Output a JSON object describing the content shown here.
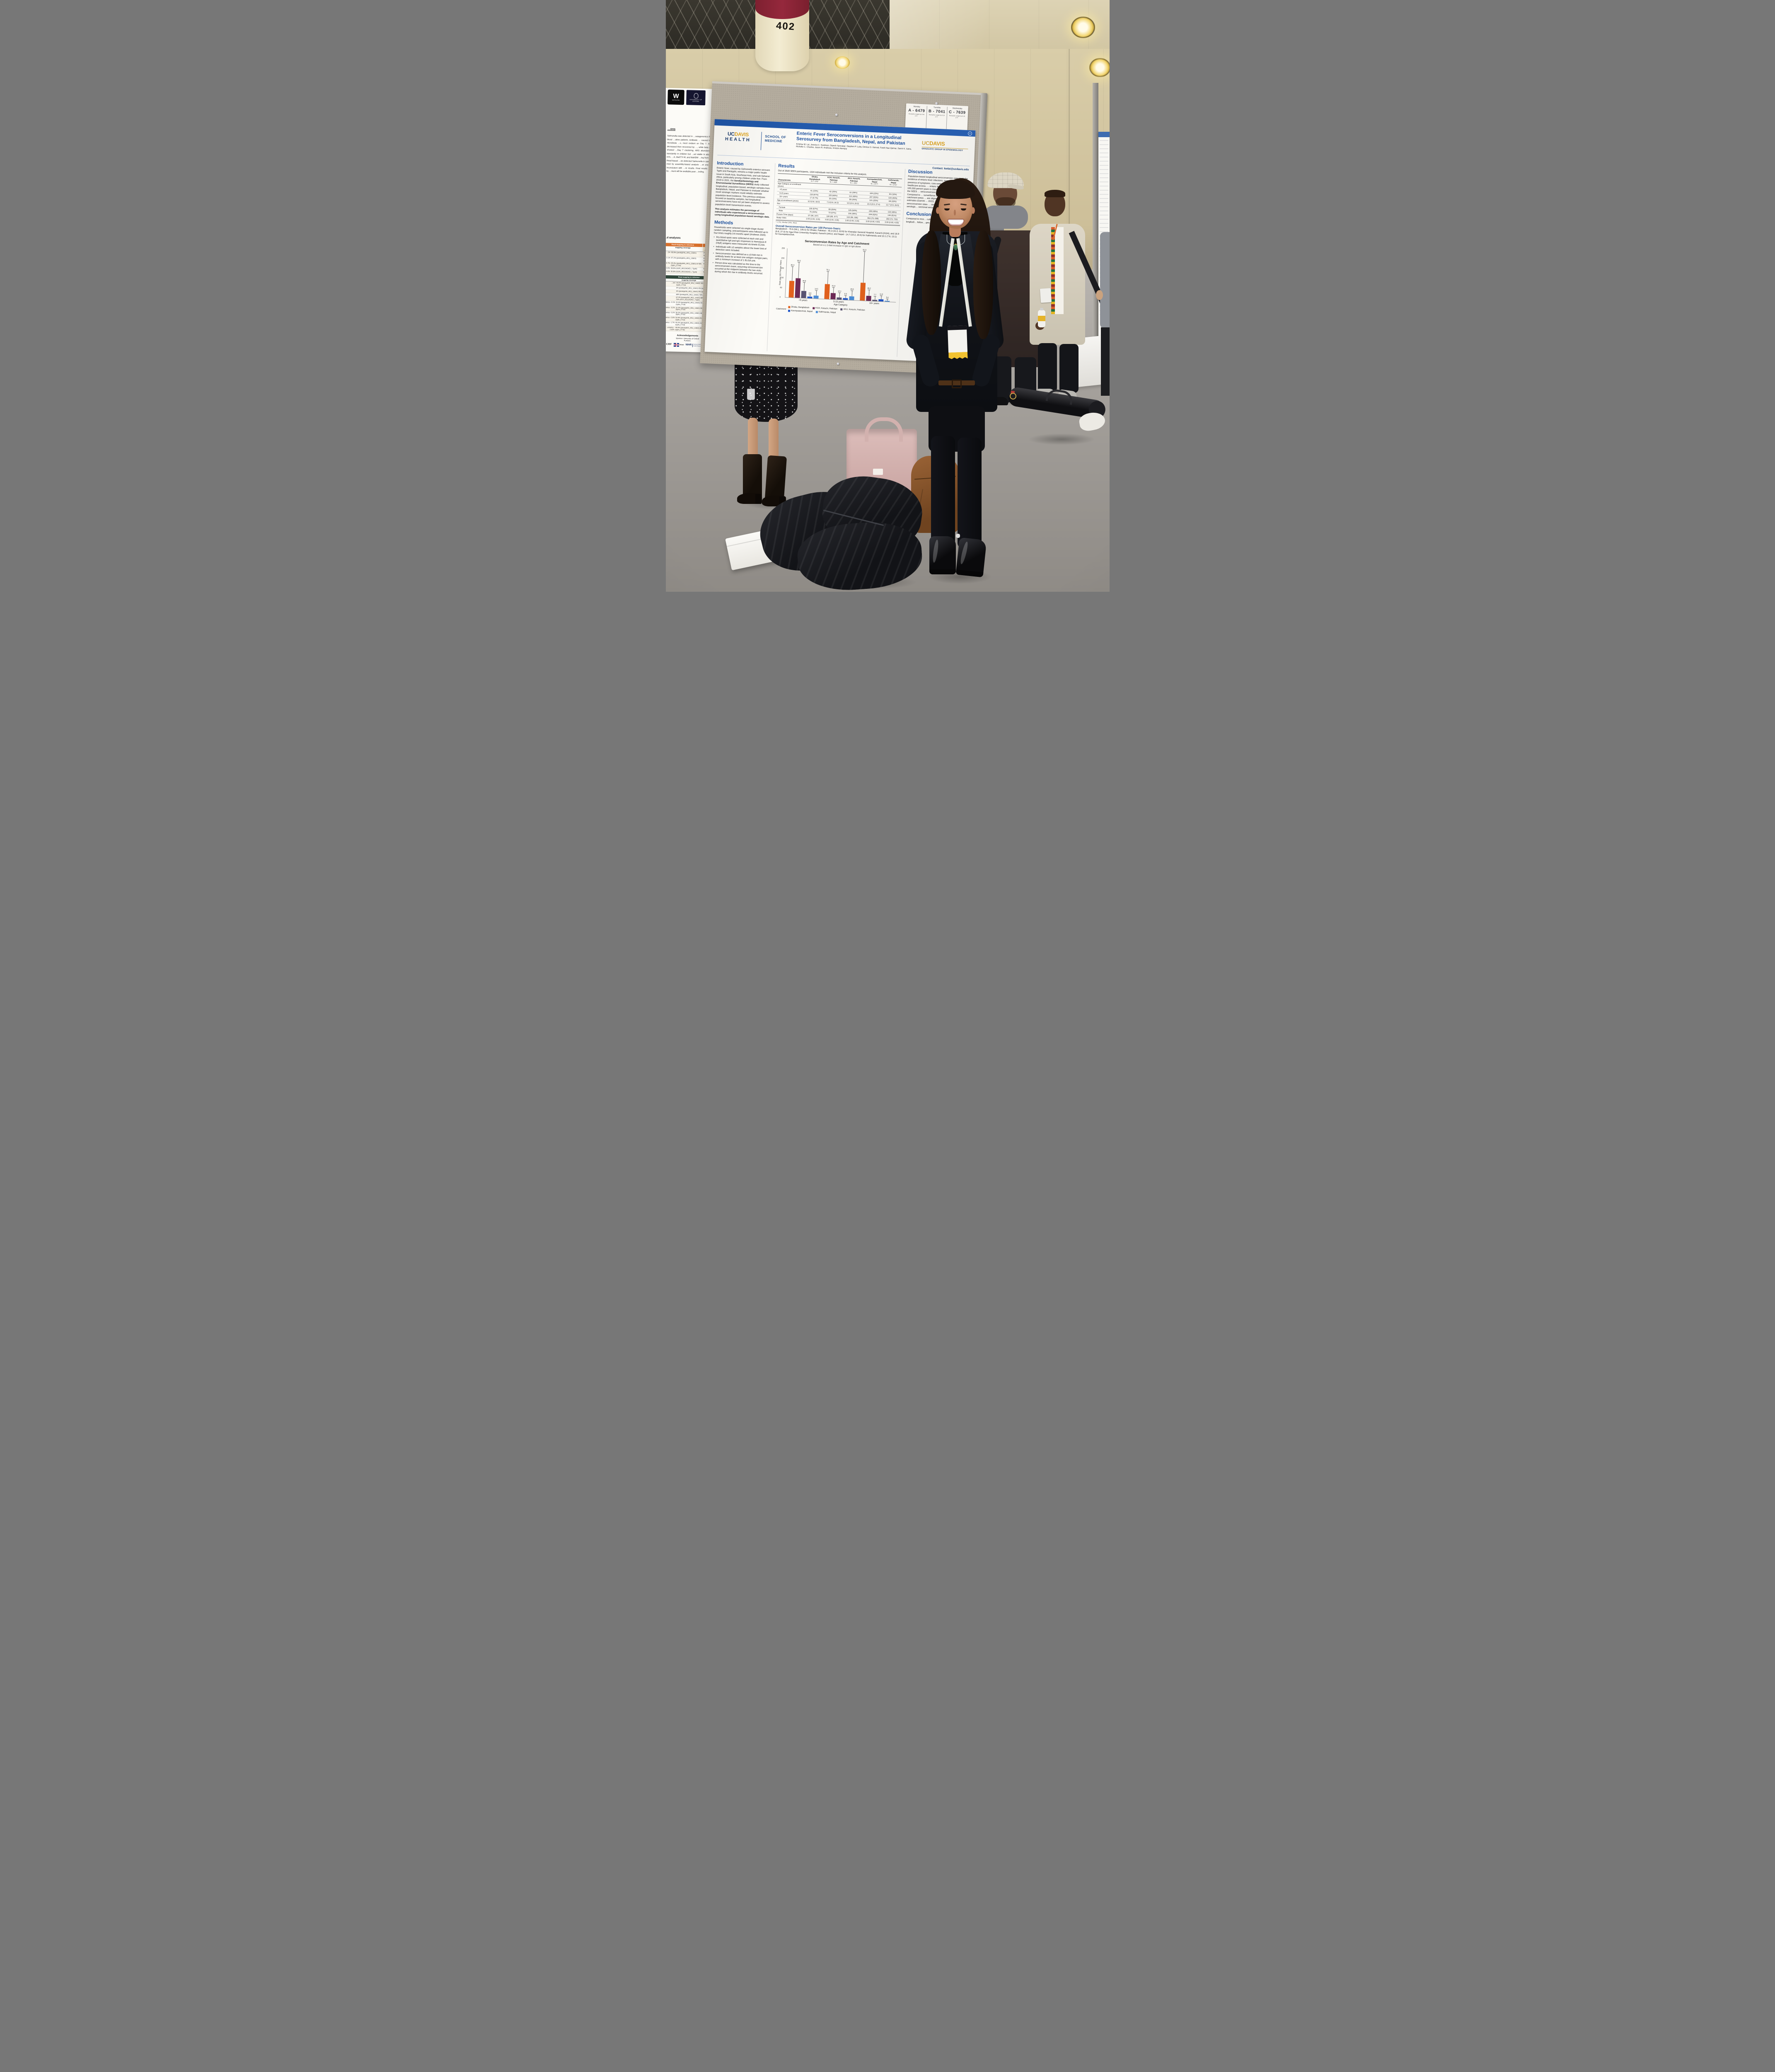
{
  "pillar_label": "402",
  "poster_tag": "7041",
  "schedule_card": {
    "columns": [
      {
        "day": "Monday",
        "code": "A - 6479",
        "note": "Dismantle tonight by 6:45 p.m."
      },
      {
        "day": "Tuesday",
        "code": "B - 7041",
        "note": "Dismantle tonight by 6:15 p.m."
      },
      {
        "day": "Wednesday",
        "code": "C - 7639",
        "note": "Dismantle tonight by 5:15 p.m."
      }
    ]
  },
  "poster": {
    "logos": {
      "health_uc": "UC",
      "health_davis": "DAVIS",
      "health_word": "HEALTH",
      "school": "SCHOOL OF MEDICINE",
      "grad_uc": "UC",
      "grad_davis": "DAVIS",
      "grad_sub": "GRADUATE GROUP IN EPIDEMIOLOGY"
    },
    "accent_blue": "#1b4f9e",
    "gold": "#e0a51e",
    "title": "Enteric Fever Seroconversions in a Longitudinal Serosurvey from Bangladesh, Nepal, and Pakistan",
    "authors": "Kristina W. Lai, Jessica C. Seidman, Dipesh Tamrakar, Stephen P. Luby, Denise O. Garrett, Farah Naz Qamar, Samir K. Saha, Richelle C. Charles, Jason R. Andrews, Kristen Aiemjoy",
    "contact": "Contact: kwlai@ucdavis.edu",
    "intro": {
      "heading": "Introduction",
      "p1_pre": "Enteric fever, caused by ",
      "p1_italic": "Salmonella enterica",
      "p1_mid": " serovars Typhi and Paratyphi, remains a major public health issue in South Asia, Southeast Asia, and sub-Saharan Africa, particularly among children under five. From 2019 to 2021, the ",
      "p1_bold": "SeroEpidemiology and Environmental Surveillance (SEES)",
      "p1_post": " study collected longitudinal, population-based, serologic samples from Bangladesh, Nepal, and Pakistan to evaluate whether novel serologic markers could reliably estimate population-level incidence. This previous analyses focused on baseline samples, but longitudinal seroconversions have not yet been analyzed to assess population-level transmission events.",
      "p2": "This analysis estimates the percentage of individuals who experienced a seroconversion using longitudinal population-based serologic data."
    },
    "methods": {
      "heading": "Methods",
      "intro": "Households were selected via single-stage cluster random sampling, and participants were followed up to four times roughly 3-6 months apart (Andrews 2020).",
      "bullets": [
        "Dry blood spots were collected at each visit and quantitative IgA and IgG responses to Hemolysin E (HlyE) antigens were measured via kinetic ELISA.",
        "Individuals with ≥2 samples above the lower limit of detection were included.",
        "Seroconversion was defined as a ≥3-fold rise in antibody levels for at least one antigen–isotype pairs, with a minimum increase of 1 ELISA unit.",
        "Person-time was calculated as the time to the seroconversion event, assuming seroconversion occurred at the midpoint between the two visits during which the rise in antibody levels occurred."
      ]
    },
    "results": {
      "heading": "Results",
      "intro": "Out of 2649 SEES participants, 1324 individuals met the inclusion criteria for this analysis.",
      "table": {
        "col_header_label": "Characteristic",
        "columns": [
          {
            "site": "Dhaka, Bangladesh",
            "n": "N = 176¹"
          },
          {
            "site": "KGH, Karachi, Pakistan",
            "n": "N = 168¹"
          },
          {
            "site": "AKU, Karachi, Pakistan",
            "n": "N = 231¹"
          },
          {
            "site": "Kavrepalanchok, Nepal",
            "n": "N = 477¹"
          },
          {
            "site": "Kathmandu, Nepal",
            "n": "N = 272¹"
          }
        ],
        "rows": [
          {
            "label": "Age Category at enrollment (years)",
            "indent": 0,
            "values": [
              "",
              "",
              "",
              "",
              ""
            ]
          },
          {
            "label": "<5 years",
            "indent": 1,
            "values": [
              "41 (23%)",
              "42 (25%)",
              "61 (26%)",
              "109 (23%)",
              "50 (18%)"
            ]
          },
          {
            "label": "5-15 years",
            "indent": 1,
            "values": [
              "118 (67%)",
              "100 (60%)",
              "112 (48%)",
              "247 (52%)",
              "133 (49%)"
            ]
          },
          {
            "label": "16+ years",
            "indent": 1,
            "values": [
              "17 (9.7%)",
              "26 (15%)",
              "58 (25%)",
              "121 (25%)",
              "89 (33%)"
            ]
          },
          {
            "label": "Age at enrollment (years)",
            "indent": 0,
            "values": [
              "9.5 (0.8, 18.0)",
              "7.9 (0.8, 24.3)",
              "9.5 (0.9, 24.0)",
              "10.4 (0.9, 27.4)",
              "12.7 (0.9, 26.5)"
            ]
          },
          {
            "label": "Sex",
            "indent": 0,
            "values": [
              "",
              "",
              "",
              "",
              ""
            ]
          },
          {
            "label": "Female",
            "indent": 1,
            "values": [
              "100 (57%)",
              "89 (53%)",
              "125 (54%)",
              "228 (48%)",
              "132 (49%)"
            ]
          },
          {
            "label": "Male",
            "indent": 1,
            "values": [
              "76 (43%)",
              "79 (47%)",
              "106 (46%)",
              "249 (52%)",
              "140 (51%)"
            ]
          },
          {
            "label": "Person-Time (days)",
            "indent": 0,
            "values": [
              "97 (90, 247)",
              "180 (85, 377)",
              "163 (55, 396)",
              "463 (79, 698)",
              "350 (73, 733)"
            ]
          },
          {
            "label": "Study Visits",
            "indent": 0,
            "values": [
              "2.00 (2.00, 3.00)",
              "3.00 (2.00, 3.00)",
              "3.00 (2.00, 3.00)",
              "3.00 (2.00, 4.00)",
              "3.00 (2.00, 4.00)"
            ]
          }
        ],
        "footnote": "¹ n (%); Median (Min, Max)"
      },
      "overall_heading": "Overall Seroconversion Rates per 100 Person-Years:",
      "overall_text": "Bangladesh - 79.6 (58.1, 106.5) for Dhaka; Pakistan - 45.3 (31.0, 63.9) for Kharadar General Hospital, Karachi (KGH), and 16.9 (9.8, 27.0) for Aga Khan University Hospital, Karachi (AKU); and Nepal - 14.7 (10.2, 20.5) for Kathmandu and 10.1 (7.6, 13.1) for Kavrepalanchok."
    },
    "discussion": {
      "heading": "Discussion",
      "text": "Population-based longitudinal seroconversion rates track the incidence of enteric fever infections, regardless of the presence of symptoms, care-seeking behavior, and healthcare access. … enteric fever incidence of over 100 per 100,000 person-years is classified as high (Crump 2004). In the SEES … seroconversion rates in all st… this threshold. Compared to … surveillance and seroincidence … the same catchment areas … are aligned with the rank … prior estimates (Garrett … 2022). Furthermore, the … seroconversion rates … similar to the seroinc… found using serologic… sectional serosurvey… visit."
    },
    "conclusion": {
      "heading": "Conclusion",
      "text": "Compared to rece… culture surveillan… locations, thes… longitudi… follow… geo…"
    }
  },
  "chart_data": {
    "type": "bar",
    "title": "Seroconversion Rates by Age and Catchment",
    "subtitle": "Based on a ≥ 3-fold increase in IgG or IgA alone",
    "xlabel": "Age Category",
    "ylabel": "Rate per 100 Person-Years",
    "ylim": [
      0,
      250
    ],
    "yticks": [
      0,
      50,
      100,
      150,
      200,
      250
    ],
    "grid": false,
    "error_bars": true,
    "legend_title": "Catchment",
    "legend_position": "bottom",
    "categories": [
      "<5 years",
      "5-15 years",
      "16+ years"
    ],
    "series": [
      {
        "name": "Dhaka, Bangladesh",
        "color": "#E4621D",
        "values": [
          85.3,
          76.1,
          91.9
        ],
        "upper_whisker_approx": [
          157,
          140,
          250
        ]
      },
      {
        "name": "KGH, Karachi, Pakistan",
        "color": "#6E2A57",
        "values": [
          99.3,
          31.8,
          26.2
        ],
        "upper_whisker_approx": [
          180,
          60,
          55
        ]
      },
      {
        "name": "AKU, Karachi, Pakistan",
        "color": "#5A5472",
        "values": [
          35.8,
          12.1,
          7.7
        ],
        "upper_whisker_approx": [
          80,
          35,
          25
        ]
      },
      {
        "name": "Kavrepalanchok, Nepal",
        "color": "#1E55C8",
        "values": [
          8.8,
          9.9,
          11.6
        ],
        "upper_whisker_approx": [
          18,
          22,
          28
        ]
      },
      {
        "name": "Kathmandu, Nepal",
        "color": "#4E8FD9",
        "values": [
          14.5,
          20.6,
          5.4
        ],
        "upper_whisker_approx": [
          40,
          48,
          14
        ]
      }
    ]
  },
  "left_poster": {
    "logos": {
      "wellcome_mark": "W",
      "wellcome": "wellcome",
      "oxford": "UNIVERSITY OF\nOXFORD"
    },
    "heading_fragment": "…ons",
    "body_fragment": "Salmonella was detected in …netagenomics from five blood …sitive patients. Antibiotic … caused transient microbiota …s, most evident on Day 7. Alpha … decreased then recovered by …, while beta diversity showed …Day 7 clustering. ARG abundance …ed transiently in children but …ed stable in adults, with erm, …A, blaCTX-M, and blaNDM …ing from Day 14. Read-based …sis detected Salmonella in samples, …med by assembly-based analysis …ot one sample inconsistent with …re results. Final results stratified by …ment will be available post-…inding.",
    "analyses_heading_fragment": "…d analyses",
    "table1": {
      "header1": "Read-mapping to reference",
      "header2": "MAG",
      "subheader1": "mapping coverage",
      "subheader2": "GenoTyphi /Paratype…",
      "rows": [
        [
          "…2%",
          "98.8% (paratyphiA_AKU_12601)",
          "Paratyphi A… (gyrA-S…)"
        ],
        [
          "2.1%",
          "97.2% (paratyphiA_AKU_12601)",
          "Paratyphi A… (wzx-G3…)"
        ],
        [
          "9.7%",
          "95.4% (paratyphiA_AKU_12601)  87.6% (typhi_CT18)",
          "Typhi-3…"
        ],
        [
          "- 0.9%",
          "98.8% (GCF_001134345.1, Typhi)",
          "Typhi-4…"
        ],
        [
          "- 4.0%",
          "99.6% (GCF_001134345.1, Typhi)",
          "Typhi-…"
        ]
      ]
    },
    "table2": {
      "header1": "Read-mapping to reference",
      "subheader1": "mapping coverage",
      "rows": [
        [
          "…an2",
          "49.0% (paratyphiA_AKU_12601)  48.6% (typhi_CT18)"
        ],
        [
          "",
          "0% (paratyphiA_AKU_12601)  0% (typhi_CT18)"
        ],
        [
          "",
          "0% (paratyphiA_AKU_12601)  0% (typhi_CT18)"
        ],
        [
          "",
          "68% (paratyphiA_AKU_12601)  70% (typhi_CT18)"
        ],
        [
          "",
          "67.3% (paratyphiA_AKU_12601)  68% (typhi_CT18)  70% (GCF_001134345.1, Typhi)"
        ],
        [
          "…terica - 0.1%",
          "42.3% (paratyphiA_AKU_12601)  40.5% (typhi_CT18)"
        ],
        [
          "…nterica - 0.2%",
          "31.4% (paratyphiA_AKU_12601)  39.9% (typhi_CT18)"
        ],
        [
          "…nterica - 0.2%",
          "50.3% (paratyphiA_AKU_12601)  48.4% (typhi_CT18)"
        ],
        [
          "…enterica - 0.6%",
          "52.6% (paratyphiA_AKU_12601)  51.5% (typhi_CT18)"
        ],
        [
          "…enterica - 1.7%",
          "45.3% (paratyphiA_AKU_12601)  43.2% (typhi_CT18)"
        ],
        [
          "…enterica - 3.02%",
          "45.5% (paratyphiA_AKU_12601)  43.5% (typhi_CT18)"
        ]
      ]
    },
    "acknowledgements": {
      "heading": "Acknowledgements",
      "sponsor": "Sponsor: University of Oxford",
      "funders_label": "Funders:",
      "funder_gcrf": "GCRF",
      "funder_ukaid": "UKaid",
      "funder_nihr": "NIHR",
      "funder_nihr_sub": "National Institute for Health Research",
      "funder_ukri": "UKRI"
    }
  },
  "scene_colors": {
    "badge_ribbon": "#f2c230",
    "poster_band_blue": "#2157a5",
    "board_fabric": "#b4ac9e",
    "wall": "#d9cda9"
  }
}
